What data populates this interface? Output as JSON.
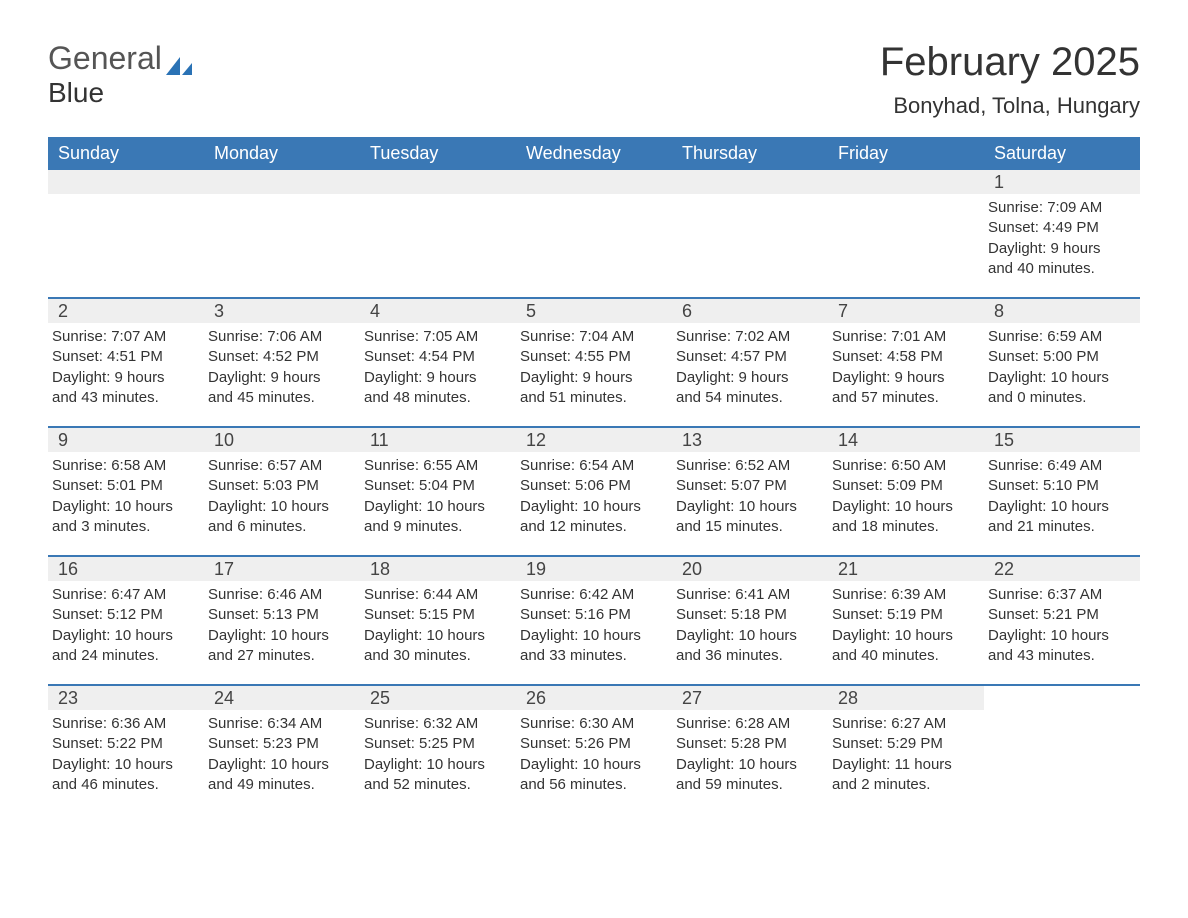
{
  "brand": {
    "word1": "General",
    "word2": "Blue"
  },
  "title": "February 2025",
  "location": "Bonyhad, Tolna, Hungary",
  "colors": {
    "header_bg": "#3a78b5",
    "header_text": "#ffffff",
    "daynum_bg": "#efefef",
    "border": "#3a78b5",
    "text": "#333333",
    "brand_blue": "#2a72b5"
  },
  "dow": [
    "Sunday",
    "Monday",
    "Tuesday",
    "Wednesday",
    "Thursday",
    "Friday",
    "Saturday"
  ],
  "weeks": [
    [
      {
        "n": "",
        "sr": "",
        "ss": "",
        "dl1": "",
        "dl2": ""
      },
      {
        "n": "",
        "sr": "",
        "ss": "",
        "dl1": "",
        "dl2": ""
      },
      {
        "n": "",
        "sr": "",
        "ss": "",
        "dl1": "",
        "dl2": ""
      },
      {
        "n": "",
        "sr": "",
        "ss": "",
        "dl1": "",
        "dl2": ""
      },
      {
        "n": "",
        "sr": "",
        "ss": "",
        "dl1": "",
        "dl2": ""
      },
      {
        "n": "",
        "sr": "",
        "ss": "",
        "dl1": "",
        "dl2": ""
      },
      {
        "n": "1",
        "sr": "Sunrise: 7:09 AM",
        "ss": "Sunset: 4:49 PM",
        "dl1": "Daylight: 9 hours",
        "dl2": "and 40 minutes."
      }
    ],
    [
      {
        "n": "2",
        "sr": "Sunrise: 7:07 AM",
        "ss": "Sunset: 4:51 PM",
        "dl1": "Daylight: 9 hours",
        "dl2": "and 43 minutes."
      },
      {
        "n": "3",
        "sr": "Sunrise: 7:06 AM",
        "ss": "Sunset: 4:52 PM",
        "dl1": "Daylight: 9 hours",
        "dl2": "and 45 minutes."
      },
      {
        "n": "4",
        "sr": "Sunrise: 7:05 AM",
        "ss": "Sunset: 4:54 PM",
        "dl1": "Daylight: 9 hours",
        "dl2": "and 48 minutes."
      },
      {
        "n": "5",
        "sr": "Sunrise: 7:04 AM",
        "ss": "Sunset: 4:55 PM",
        "dl1": "Daylight: 9 hours",
        "dl2": "and 51 minutes."
      },
      {
        "n": "6",
        "sr": "Sunrise: 7:02 AM",
        "ss": "Sunset: 4:57 PM",
        "dl1": "Daylight: 9 hours",
        "dl2": "and 54 minutes."
      },
      {
        "n": "7",
        "sr": "Sunrise: 7:01 AM",
        "ss": "Sunset: 4:58 PM",
        "dl1": "Daylight: 9 hours",
        "dl2": "and 57 minutes."
      },
      {
        "n": "8",
        "sr": "Sunrise: 6:59 AM",
        "ss": "Sunset: 5:00 PM",
        "dl1": "Daylight: 10 hours",
        "dl2": "and 0 minutes."
      }
    ],
    [
      {
        "n": "9",
        "sr": "Sunrise: 6:58 AM",
        "ss": "Sunset: 5:01 PM",
        "dl1": "Daylight: 10 hours",
        "dl2": "and 3 minutes."
      },
      {
        "n": "10",
        "sr": "Sunrise: 6:57 AM",
        "ss": "Sunset: 5:03 PM",
        "dl1": "Daylight: 10 hours",
        "dl2": "and 6 minutes."
      },
      {
        "n": "11",
        "sr": "Sunrise: 6:55 AM",
        "ss": "Sunset: 5:04 PM",
        "dl1": "Daylight: 10 hours",
        "dl2": "and 9 minutes."
      },
      {
        "n": "12",
        "sr": "Sunrise: 6:54 AM",
        "ss": "Sunset: 5:06 PM",
        "dl1": "Daylight: 10 hours",
        "dl2": "and 12 minutes."
      },
      {
        "n": "13",
        "sr": "Sunrise: 6:52 AM",
        "ss": "Sunset: 5:07 PM",
        "dl1": "Daylight: 10 hours",
        "dl2": "and 15 minutes."
      },
      {
        "n": "14",
        "sr": "Sunrise: 6:50 AM",
        "ss": "Sunset: 5:09 PM",
        "dl1": "Daylight: 10 hours",
        "dl2": "and 18 minutes."
      },
      {
        "n": "15",
        "sr": "Sunrise: 6:49 AM",
        "ss": "Sunset: 5:10 PM",
        "dl1": "Daylight: 10 hours",
        "dl2": "and 21 minutes."
      }
    ],
    [
      {
        "n": "16",
        "sr": "Sunrise: 6:47 AM",
        "ss": "Sunset: 5:12 PM",
        "dl1": "Daylight: 10 hours",
        "dl2": "and 24 minutes."
      },
      {
        "n": "17",
        "sr": "Sunrise: 6:46 AM",
        "ss": "Sunset: 5:13 PM",
        "dl1": "Daylight: 10 hours",
        "dl2": "and 27 minutes."
      },
      {
        "n": "18",
        "sr": "Sunrise: 6:44 AM",
        "ss": "Sunset: 5:15 PM",
        "dl1": "Daylight: 10 hours",
        "dl2": "and 30 minutes."
      },
      {
        "n": "19",
        "sr": "Sunrise: 6:42 AM",
        "ss": "Sunset: 5:16 PM",
        "dl1": "Daylight: 10 hours",
        "dl2": "and 33 minutes."
      },
      {
        "n": "20",
        "sr": "Sunrise: 6:41 AM",
        "ss": "Sunset: 5:18 PM",
        "dl1": "Daylight: 10 hours",
        "dl2": "and 36 minutes."
      },
      {
        "n": "21",
        "sr": "Sunrise: 6:39 AM",
        "ss": "Sunset: 5:19 PM",
        "dl1": "Daylight: 10 hours",
        "dl2": "and 40 minutes."
      },
      {
        "n": "22",
        "sr": "Sunrise: 6:37 AM",
        "ss": "Sunset: 5:21 PM",
        "dl1": "Daylight: 10 hours",
        "dl2": "and 43 minutes."
      }
    ],
    [
      {
        "n": "23",
        "sr": "Sunrise: 6:36 AM",
        "ss": "Sunset: 5:22 PM",
        "dl1": "Daylight: 10 hours",
        "dl2": "and 46 minutes."
      },
      {
        "n": "24",
        "sr": "Sunrise: 6:34 AM",
        "ss": "Sunset: 5:23 PM",
        "dl1": "Daylight: 10 hours",
        "dl2": "and 49 minutes."
      },
      {
        "n": "25",
        "sr": "Sunrise: 6:32 AM",
        "ss": "Sunset: 5:25 PM",
        "dl1": "Daylight: 10 hours",
        "dl2": "and 52 minutes."
      },
      {
        "n": "26",
        "sr": "Sunrise: 6:30 AM",
        "ss": "Sunset: 5:26 PM",
        "dl1": "Daylight: 10 hours",
        "dl2": "and 56 minutes."
      },
      {
        "n": "27",
        "sr": "Sunrise: 6:28 AM",
        "ss": "Sunset: 5:28 PM",
        "dl1": "Daylight: 10 hours",
        "dl2": "and 59 minutes."
      },
      {
        "n": "28",
        "sr": "Sunrise: 6:27 AM",
        "ss": "Sunset: 5:29 PM",
        "dl1": "Daylight: 11 hours",
        "dl2": "and 2 minutes."
      },
      {
        "n": "",
        "sr": "",
        "ss": "",
        "dl1": "",
        "dl2": ""
      }
    ]
  ]
}
